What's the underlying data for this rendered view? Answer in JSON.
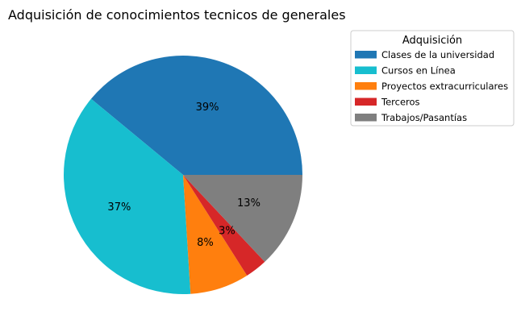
{
  "chart_data": {
    "type": "pie",
    "title": "Adquisición de conocimientos tecnicos de generales",
    "legend_title": "Adquisición",
    "legend_position": "top-right",
    "start_angle_deg": 0,
    "direction": "counterclockwise",
    "slices": [
      {
        "label": "Clases de la universidad",
        "value": 39,
        "pct_label": "39%",
        "color": "#1f77b4"
      },
      {
        "label": "Cursos en Línea",
        "value": 37,
        "pct_label": "37%",
        "color": "#17becf"
      },
      {
        "label": "Proyectos extracurriculares",
        "value": 8,
        "pct_label": "8%",
        "color": "#ff7f0e"
      },
      {
        "label": "Terceros",
        "value": 3,
        "pct_label": "3%",
        "color": "#d62728"
      },
      {
        "label": "Trabajos/Pasantías",
        "value": 13,
        "pct_label": "13%",
        "color": "#7f7f7f"
      }
    ]
  }
}
